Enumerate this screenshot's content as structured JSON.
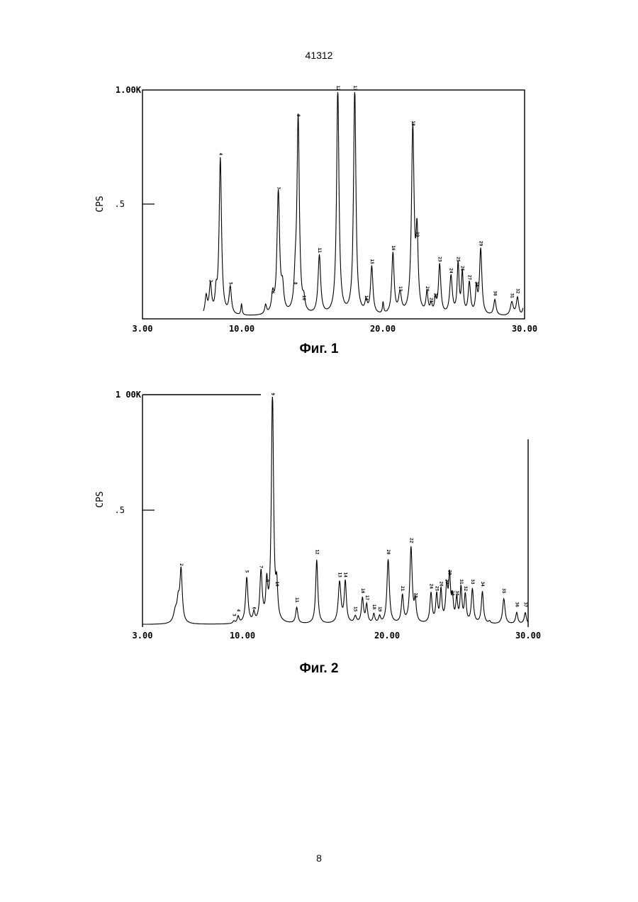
{
  "page": {
    "header": "41312",
    "page_number": "8"
  },
  "chart_data": [
    {
      "type": "line",
      "caption": "Фиг. 1",
      "ylabel": "CPS",
      "y_tick_labels": [
        ".5",
        "1.00K"
      ],
      "x_tick_labels": [
        "3.00",
        "10.00",
        "20.00",
        "30.00"
      ],
      "xlim": [
        3,
        30
      ],
      "ylim": [
        0,
        1.0
      ],
      "baseline": 0.01,
      "series": [
        {
          "peaks": [
            {
              "x": 7.5,
              "y": 0.08,
              "w": 0.09
            },
            {
              "x": 7.8,
              "y": 0.13,
              "w": 0.1,
              "label": "2"
            },
            {
              "x": 8.2,
              "y": 0.08,
              "w": 0.08
            },
            {
              "x": 8.5,
              "y": 0.69,
              "w": 0.1,
              "label": "4"
            },
            {
              "x": 9.2,
              "y": 0.12,
              "w": 0.1,
              "label": "5"
            },
            {
              "x": 10.0,
              "y": 0.05,
              "w": 0.05
            },
            {
              "x": 11.7,
              "y": 0.04,
              "w": 0.08
            },
            {
              "x": 12.2,
              "y": 0.08,
              "w": 0.1,
              "label": "6"
            },
            {
              "x": 12.6,
              "y": 0.54,
              "w": 0.11,
              "label": "7"
            },
            {
              "x": 12.9,
              "y": 0.1,
              "w": 0.1
            },
            {
              "x": 13.8,
              "y": 0.12,
              "w": 0.1,
              "label": "8"
            },
            {
              "x": 14.0,
              "y": 0.86,
              "w": 0.1,
              "label": "9"
            },
            {
              "x": 14.4,
              "y": 0.05,
              "w": 0.09,
              "label": "10"
            },
            {
              "x": 15.5,
              "y": 0.26,
              "w": 0.11,
              "label": "11"
            },
            {
              "x": 16.8,
              "y": 1.0,
              "w": 0.1,
              "label": "12"
            },
            {
              "x": 18.0,
              "y": 1.0,
              "w": 0.1,
              "label": "13"
            },
            {
              "x": 18.8,
              "y": 0.05,
              "w": 0.1,
              "label": "14"
            },
            {
              "x": 19.2,
              "y": 0.21,
              "w": 0.1,
              "label": "15"
            },
            {
              "x": 20.0,
              "y": 0.05,
              "w": 0.05
            },
            {
              "x": 20.7,
              "y": 0.27,
              "w": 0.1,
              "label": "16"
            },
            {
              "x": 21.2,
              "y": 0.09,
              "w": 0.12,
              "label": "17"
            },
            {
              "x": 22.1,
              "y": 0.82,
              "w": 0.11,
              "label": "18"
            },
            {
              "x": 22.4,
              "y": 0.33,
              "w": 0.09,
              "label": "19"
            },
            {
              "x": 23.1,
              "y": 0.09,
              "w": 0.09,
              "label": "20"
            },
            {
              "x": 23.4,
              "y": 0.04,
              "w": 0.08,
              "label": "21"
            },
            {
              "x": 23.7,
              "y": 0.06,
              "w": 0.08,
              "label": "22"
            },
            {
              "x": 24.0,
              "y": 0.22,
              "w": 0.1,
              "label": "23"
            },
            {
              "x": 24.8,
              "y": 0.17,
              "w": 0.11,
              "label": "24"
            },
            {
              "x": 25.3,
              "y": 0.22,
              "w": 0.08,
              "label": "25"
            },
            {
              "x": 25.6,
              "y": 0.18,
              "w": 0.08,
              "label": "26"
            },
            {
              "x": 26.1,
              "y": 0.14,
              "w": 0.1,
              "label": "27"
            },
            {
              "x": 26.6,
              "y": 0.11,
              "w": 0.08,
              "label": "28"
            },
            {
              "x": 26.9,
              "y": 0.29,
              "w": 0.1,
              "label": "29"
            },
            {
              "x": 27.9,
              "y": 0.07,
              "w": 0.1,
              "label": "30"
            },
            {
              "x": 29.1,
              "y": 0.06,
              "w": 0.12,
              "label": "31"
            },
            {
              "x": 29.5,
              "y": 0.08,
              "w": 0.1,
              "label": "32"
            },
            {
              "x": 29.9,
              "y": 0.03,
              "w": 0.07
            }
          ]
        }
      ]
    },
    {
      "type": "line",
      "caption": "Фиг. 2",
      "ylabel": "CPS",
      "y_tick_labels": [
        ".5",
        "1 00K"
      ],
      "x_tick_labels": [
        "3.00",
        "10.00",
        "20.00",
        "30.00"
      ],
      "xlim": [
        3,
        30
      ],
      "ylim": [
        0,
        1.0
      ],
      "baseline": 0.005,
      "series": [
        {
          "peaks": [
            {
              "x": 5.3,
              "y": 0.05,
              "w": 0.15
            },
            {
              "x": 5.5,
              "y": 0.08,
              "w": 0.1
            },
            {
              "x": 5.7,
              "y": 0.23,
              "w": 0.1,
              "label": "2"
            },
            {
              "x": 9.4,
              "y": 0.01,
              "w": 0.08,
              "label": "3"
            },
            {
              "x": 9.7,
              "y": 0.03,
              "w": 0.08,
              "label": "4"
            },
            {
              "x": 10.3,
              "y": 0.2,
              "w": 0.1,
              "label": "5"
            },
            {
              "x": 10.8,
              "y": 0.04,
              "w": 0.08,
              "label": "6"
            },
            {
              "x": 11.3,
              "y": 0.22,
              "w": 0.1,
              "label": "7"
            },
            {
              "x": 11.7,
              "y": 0.16,
              "w": 0.08,
              "label": "8"
            },
            {
              "x": 12.1,
              "y": 1.0,
              "w": 0.09,
              "label": "9"
            },
            {
              "x": 12.4,
              "y": 0.14,
              "w": 0.08,
              "label": "10"
            },
            {
              "x": 13.8,
              "y": 0.07,
              "w": 0.09,
              "label": "11"
            },
            {
              "x": 15.2,
              "y": 0.28,
              "w": 0.09,
              "label": "12"
            },
            {
              "x": 16.8,
              "y": 0.18,
              "w": 0.11,
              "label": "13"
            },
            {
              "x": 17.2,
              "y": 0.18,
              "w": 0.09,
              "label": "14"
            },
            {
              "x": 17.9,
              "y": 0.03,
              "w": 0.1,
              "label": "15"
            },
            {
              "x": 18.4,
              "y": 0.11,
              "w": 0.09,
              "label": "16"
            },
            {
              "x": 18.7,
              "y": 0.08,
              "w": 0.08,
              "label": "17"
            },
            {
              "x": 19.2,
              "y": 0.04,
              "w": 0.08,
              "label": "18"
            },
            {
              "x": 19.6,
              "y": 0.03,
              "w": 0.08,
              "label": "19"
            },
            {
              "x": 20.2,
              "y": 0.28,
              "w": 0.1,
              "label": "20"
            },
            {
              "x": 21.2,
              "y": 0.12,
              "w": 0.09,
              "label": "21"
            },
            {
              "x": 21.8,
              "y": 0.33,
              "w": 0.1,
              "label": "22"
            },
            {
              "x": 22.1,
              "y": 0.09,
              "w": 0.08,
              "label": "23"
            },
            {
              "x": 23.2,
              "y": 0.13,
              "w": 0.09,
              "label": "24"
            },
            {
              "x": 23.6,
              "y": 0.12,
              "w": 0.08,
              "label": "25"
            },
            {
              "x": 23.9,
              "y": 0.14,
              "w": 0.08,
              "label": "26"
            },
            {
              "x": 24.3,
              "y": 0.15,
              "w": 0.09,
              "label": "27"
            },
            {
              "x": 24.7,
              "y": 0.1,
              "w": 0.08,
              "label": "28"
            },
            {
              "x": 24.5,
              "y": 0.19,
              "w": 0.08,
              "label": "29"
            },
            {
              "x": 25.0,
              "y": 0.1,
              "w": 0.08,
              "label": "30"
            },
            {
              "x": 25.3,
              "y": 0.15,
              "w": 0.08,
              "label": "31"
            },
            {
              "x": 25.6,
              "y": 0.12,
              "w": 0.08,
              "label": "32"
            },
            {
              "x": 26.1,
              "y": 0.15,
              "w": 0.09,
              "label": "33"
            },
            {
              "x": 26.8,
              "y": 0.14,
              "w": 0.09,
              "label": "34"
            },
            {
              "x": 27.3,
              "y": 0.01,
              "w": 0.08
            },
            {
              "x": 28.3,
              "y": 0.11,
              "w": 0.1,
              "label": "35"
            },
            {
              "x": 29.2,
              "y": 0.05,
              "w": 0.09,
              "label": "36"
            },
            {
              "x": 29.8,
              "y": 0.05,
              "w": 0.09,
              "label": "37"
            }
          ]
        }
      ]
    }
  ]
}
